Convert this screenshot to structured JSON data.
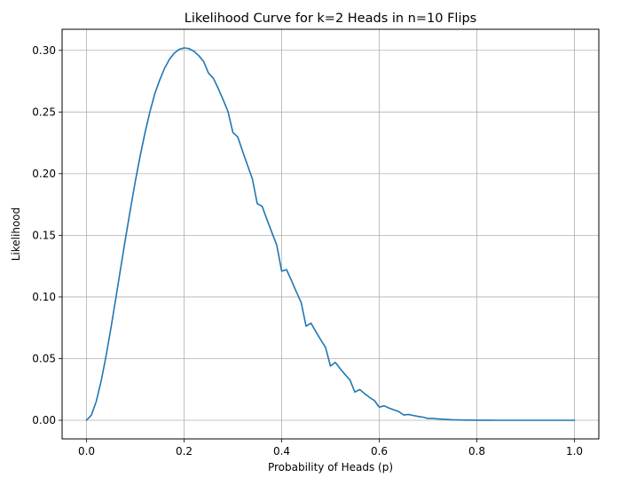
{
  "chart_data": {
    "type": "line",
    "title": "Likelihood Curve for k=2 Heads in n=10 Flips",
    "xlabel": "Probability of Heads (p)",
    "ylabel": "Likelihood",
    "xlim": [
      -0.05,
      1.05
    ],
    "ylim": [
      -0.0151,
      0.3171
    ],
    "xticks": [
      0.0,
      0.2,
      0.4,
      0.6,
      0.8,
      1.0
    ],
    "xtick_labels": [
      "0.0",
      "0.2",
      "0.4",
      "0.6",
      "0.8",
      "1.0"
    ],
    "yticks": [
      0.0,
      0.05,
      0.1,
      0.15,
      0.2,
      0.25,
      0.3
    ],
    "ytick_labels": [
      "0.00",
      "0.05",
      "0.10",
      "0.15",
      "0.20",
      "0.25",
      "0.30"
    ],
    "grid": true,
    "line_color": "#1f77b4",
    "series": [
      {
        "x": [
          0.0,
          0.01,
          0.02,
          0.03,
          0.04,
          0.05,
          0.06,
          0.07,
          0.08,
          0.09,
          0.1,
          0.11,
          0.12,
          0.13,
          0.14,
          0.15,
          0.16,
          0.17,
          0.18,
          0.19,
          0.2,
          0.21,
          0.22,
          0.23,
          0.24,
          0.25,
          0.26,
          0.27,
          0.28,
          0.29,
          0.3,
          0.31,
          0.32,
          0.33,
          0.34,
          0.35,
          0.36,
          0.37,
          0.38,
          0.39,
          0.4,
          0.41,
          0.42,
          0.43,
          0.44,
          0.45,
          0.46,
          0.47,
          0.48,
          0.49,
          0.5,
          0.51,
          0.52,
          0.53,
          0.54,
          0.55,
          0.56,
          0.57,
          0.58,
          0.59,
          0.6,
          0.61,
          0.62,
          0.63,
          0.64,
          0.65,
          0.66,
          0.67,
          0.68,
          0.69,
          0.7,
          0.71,
          0.72,
          0.73,
          0.74,
          0.75,
          0.76,
          0.77,
          0.78,
          0.79,
          0.8,
          0.81,
          0.82,
          0.83,
          0.84,
          0.85,
          0.86,
          0.87,
          0.88,
          0.89,
          0.9,
          0.91,
          0.92,
          0.93,
          0.94,
          0.95,
          0.96,
          0.97,
          0.98,
          0.99,
          1.0
        ],
        "values": [
          0.0,
          0.00415,
          0.01531,
          0.03174,
          0.05194,
          0.07463,
          0.09872,
          0.1233,
          0.14763,
          0.17108,
          0.19371,
          0.2144,
          0.23328,
          0.25016,
          0.2648,
          0.2759,
          0.28546,
          0.29272,
          0.29776,
          0.30082,
          0.30199,
          0.30145,
          0.29929,
          0.29576,
          0.29104,
          0.28157,
          0.27742,
          0.26908,
          0.25998,
          0.25032,
          0.23347,
          0.22971,
          0.21813,
          0.20685,
          0.19569,
          0.17565,
          0.1735,
          0.16263,
          0.1522,
          0.14194,
          0.12093,
          0.12216,
          0.11338,
          0.10418,
          0.09552,
          0.0763,
          0.07878,
          0.07193,
          0.0653,
          0.05901,
          0.04395,
          0.0469,
          0.04177,
          0.03707,
          0.03265,
          0.02289,
          0.02489,
          0.02162,
          0.01859,
          0.01599,
          0.01062,
          0.01174,
          0.00988,
          0.00841,
          0.00706,
          0.0043,
          0.00473,
          0.00388,
          0.00311,
          0.0025,
          0.00145,
          0.00151,
          0.00111,
          0.00085,
          0.00064,
          0.00039,
          0.00033,
          0.00023,
          0.00016,
          0.00011,
          7e-05,
          5e-05,
          3e-05,
          2e-05,
          1e-05,
          1e-05,
          0.0,
          0.0,
          0.0,
          0.0,
          0.0,
          0.0,
          0.0,
          0.0,
          0.0,
          0.0,
          0.0,
          0.0,
          0.0,
          0.0,
          0.0
        ]
      }
    ]
  }
}
